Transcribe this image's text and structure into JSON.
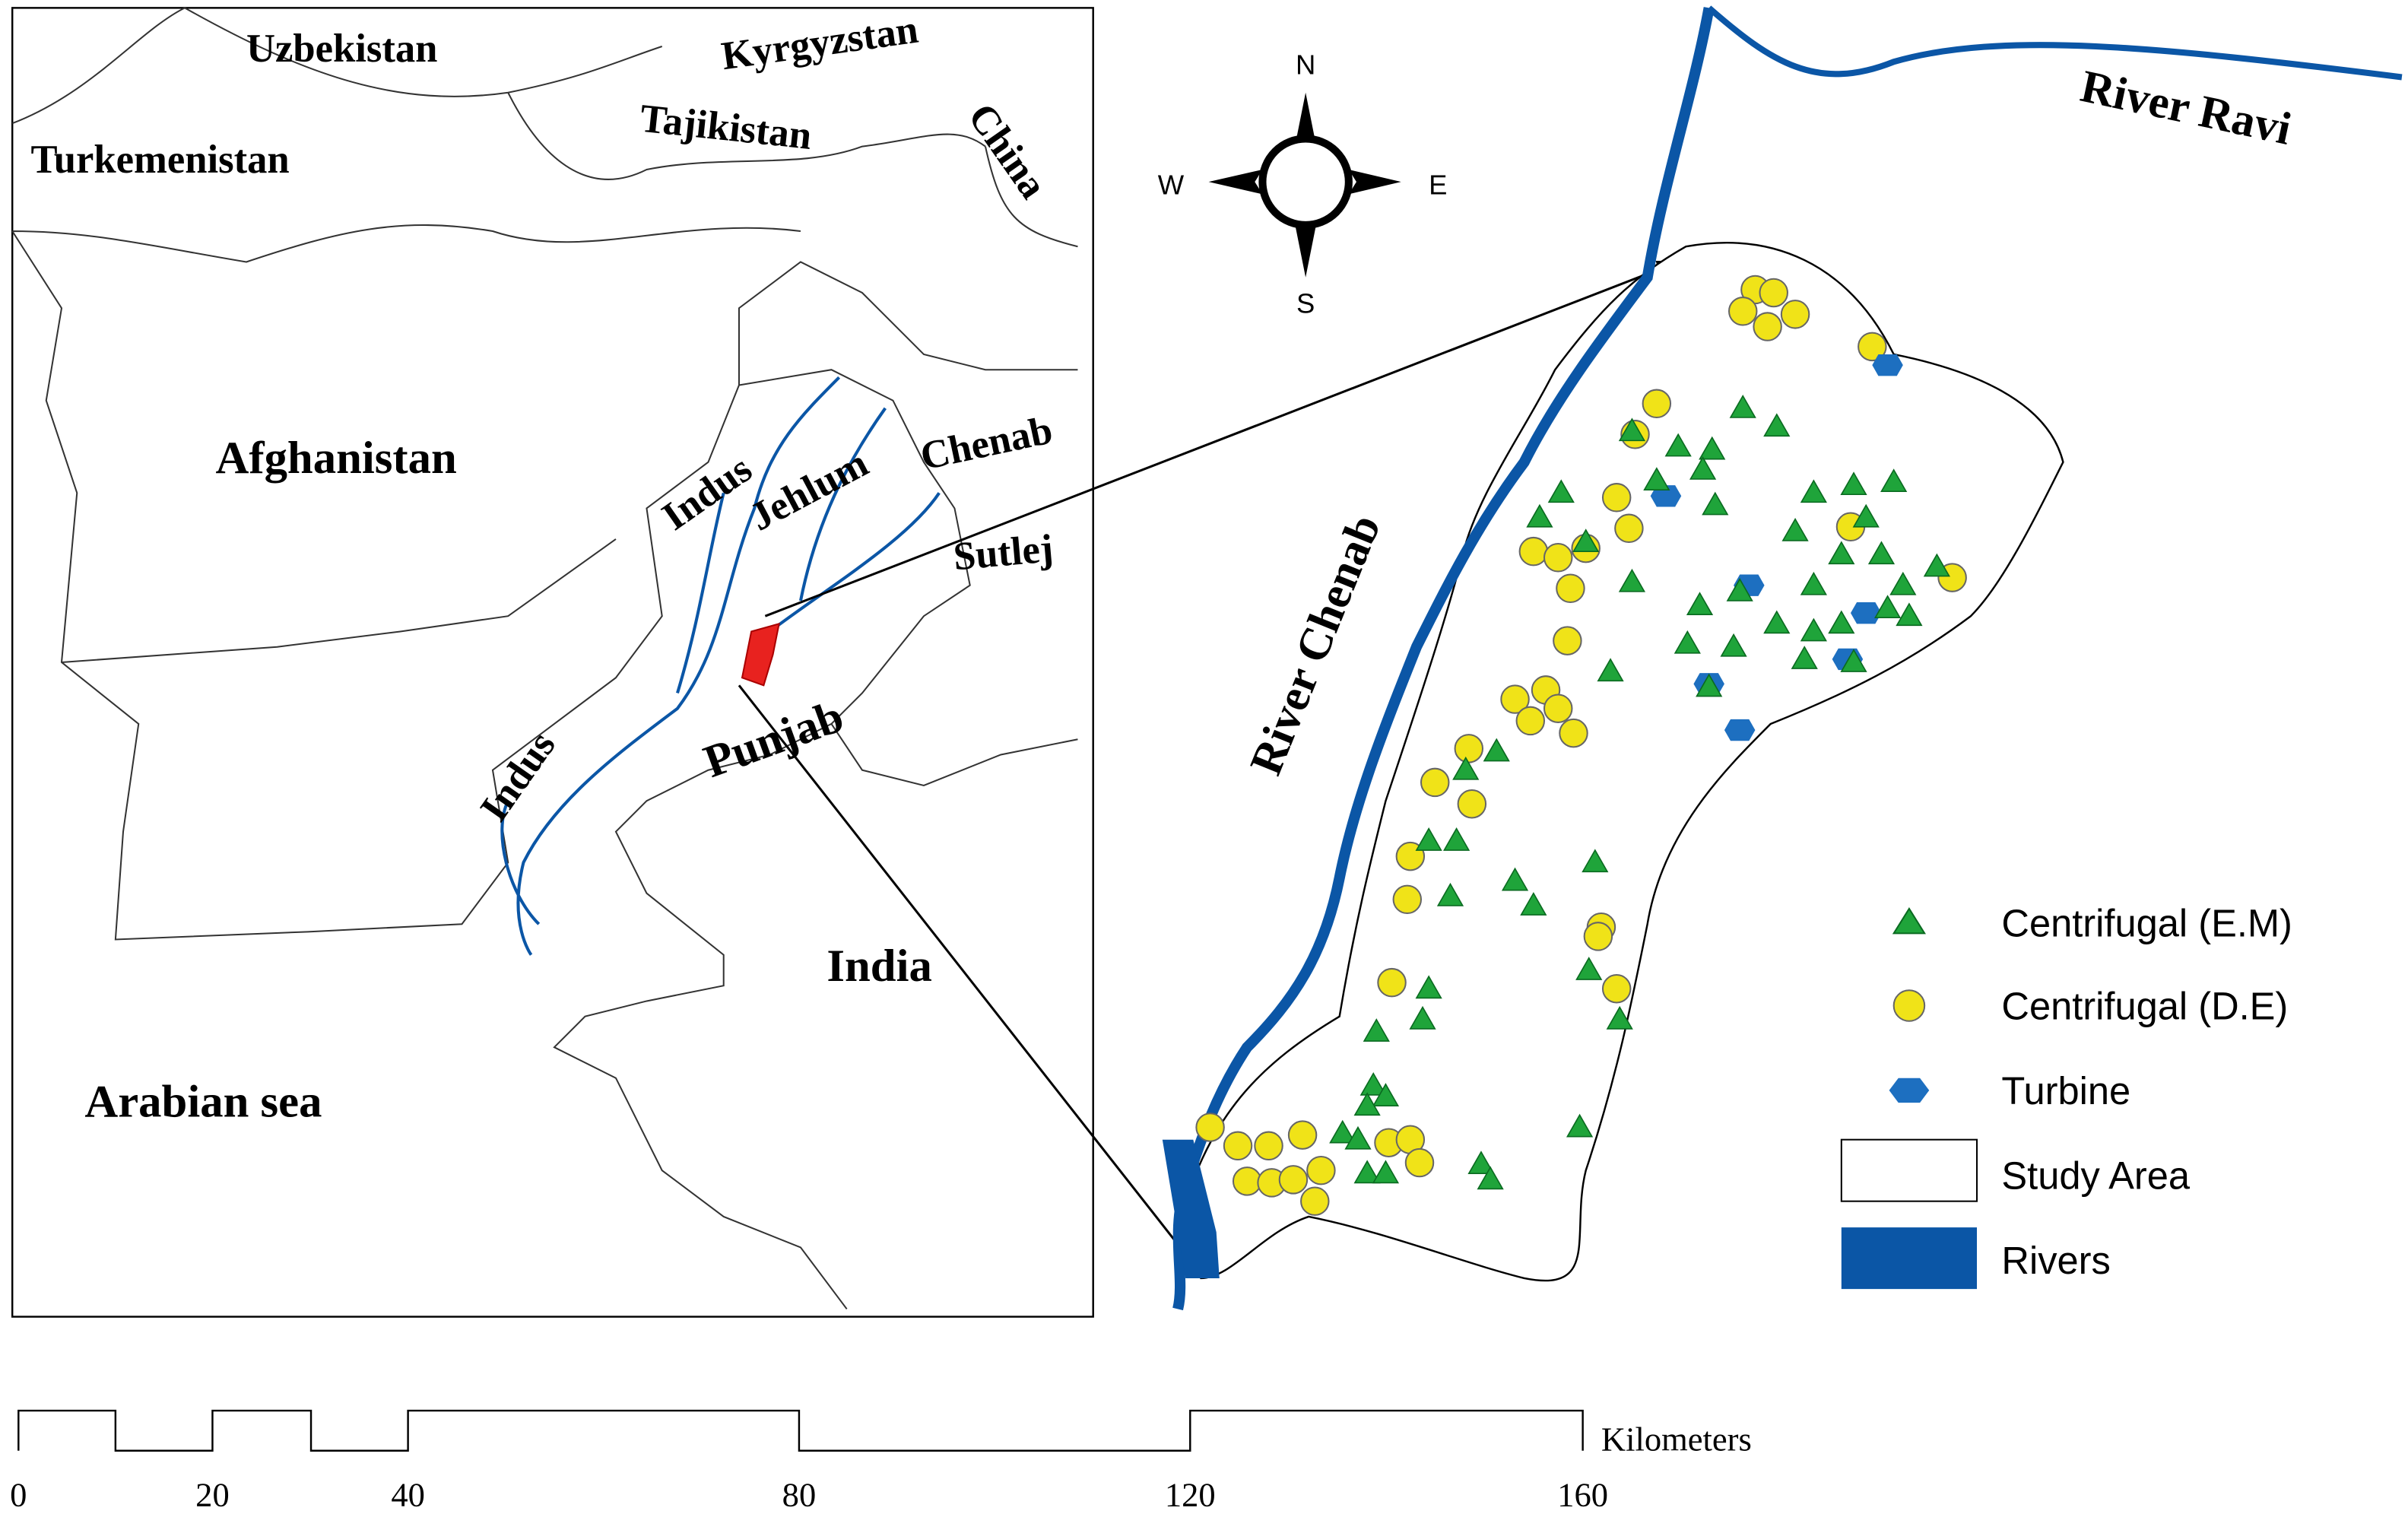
{
  "inset_map": {
    "labels": [
      "Uzbekistan",
      "Kyrgyzstan",
      "Tajikistan",
      "China",
      "Turkemenistan",
      "Afghanistan",
      "Indus",
      "Jehlum",
      "Chenab",
      "Sutlej",
      "Indus",
      "Punjab",
      "India",
      "Arabian sea"
    ]
  },
  "study_map": {
    "rivers": [
      "River Ravi",
      "River Chenab"
    ]
  },
  "compass": {
    "n": "N",
    "e": "E",
    "s": "S",
    "w": "W"
  },
  "legend": {
    "items": [
      "Centrifugal (E.M)",
      "Centrifugal (D.E)",
      "Turbine",
      "Study Area",
      "Rivers"
    ]
  },
  "scale_bar": {
    "unit": "Kilometers",
    "ticks": [
      0,
      20,
      40,
      80,
      120,
      160
    ]
  }
}
